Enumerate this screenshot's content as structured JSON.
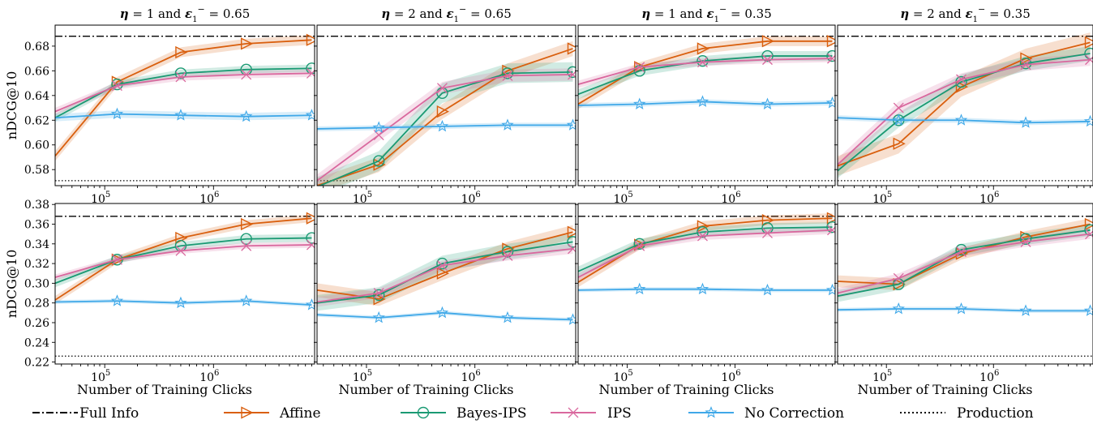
{
  "colors": {
    "Affine": "#d95f0e",
    "Bayes-IPS": "#1a9a73",
    "IPS": "#d9689e",
    "No Correction": "#3fa8e8",
    "Full Info": "#000000",
    "Production": "#000000"
  },
  "legend": [
    {
      "label": "Full Info",
      "style": "dashdot"
    },
    {
      "label": "Affine",
      "marker": "triangle-right"
    },
    {
      "label": "Bayes-IPS",
      "marker": "circle"
    },
    {
      "label": "IPS",
      "marker": "x"
    },
    {
      "label": "No Correction",
      "marker": "star"
    },
    {
      "label": "Production",
      "style": "dotted"
    }
  ],
  "chart_data": {
    "type": "line",
    "x_scale": "log",
    "xlim": [
      35000,
      8500000
    ],
    "x_ticks": [
      {
        "label": "10",
        "exp": "5",
        "value": 100000
      },
      {
        "label": "10",
        "exp": "6",
        "value": 1000000
      }
    ],
    "x_points": [
      35000,
      130000,
      500000,
      2000000,
      8000000
    ],
    "xlabel": "Number of Training Clicks",
    "ylabel": "nDCG@10",
    "titles": [
      {
        "pre": "η",
        "mid": " = 1 and ",
        "sym": "ε",
        "sub": "1",
        "sup": "−",
        "post": " = 0.65"
      },
      {
        "pre": "η",
        "mid": " = 2 and ",
        "sym": "ε",
        "sub": "1",
        "sup": "−",
        "post": " = 0.65"
      },
      {
        "pre": "η",
        "mid": " = 1 and ",
        "sym": "ε",
        "sub": "1",
        "sup": "−",
        "post": " = 0.35"
      },
      {
        "pre": "η",
        "mid": " = 2 and ",
        "sym": "ε",
        "sub": "1",
        "sup": "−",
        "post": " = 0.35"
      }
    ],
    "rows": [
      {
        "ylim": [
          0.567,
          0.697
        ],
        "y_ticks": [
          "0.58",
          "0.60",
          "0.62",
          "0.64",
          "0.66",
          "0.68"
        ],
        "full_info": 0.688,
        "production": 0.571,
        "panels": [
          {
            "series": [
              {
                "name": "Affine",
                "values": [
                  0.591,
                  0.651,
                  0.675,
                  0.682,
                  0.685
                ],
                "band": 0.004
              },
              {
                "name": "Bayes-IPS",
                "values": [
                  0.622,
                  0.649,
                  0.658,
                  0.661,
                  0.662
                ],
                "band": 0.003
              },
              {
                "name": "IPS",
                "values": [
                  0.627,
                  0.648,
                  0.655,
                  0.657,
                  0.658
                ],
                "band": 0.003
              },
              {
                "name": "No Correction",
                "values": [
                  0.622,
                  0.625,
                  0.624,
                  0.623,
                  0.624
                ],
                "band": 0.003
              }
            ]
          },
          {
            "series": [
              {
                "name": "Affine",
                "values": [
                  0.567,
                  0.584,
                  0.627,
                  0.66,
                  0.678
                ],
                "band": 0.006
              },
              {
                "name": "Bayes-IPS",
                "values": [
                  0.566,
                  0.587,
                  0.642,
                  0.658,
                  0.659
                ],
                "band": 0.008
              },
              {
                "name": "IPS",
                "values": [
                  0.571,
                  0.608,
                  0.646,
                  0.656,
                  0.657
                ],
                "band": 0.005
              },
              {
                "name": "No Correction",
                "values": [
                  0.613,
                  0.614,
                  0.615,
                  0.616,
                  0.616
                ],
                "band": 0.002
              }
            ]
          },
          {
            "series": [
              {
                "name": "Affine",
                "values": [
                  0.633,
                  0.663,
                  0.678,
                  0.684,
                  0.684
                ],
                "band": 0.004
              },
              {
                "name": "Bayes-IPS",
                "values": [
                  0.641,
                  0.66,
                  0.668,
                  0.672,
                  0.672
                ],
                "band": 0.004
              },
              {
                "name": "IPS",
                "values": [
                  0.649,
                  0.663,
                  0.667,
                  0.669,
                  0.67
                ],
                "band": 0.003
              },
              {
                "name": "No Correction",
                "values": [
                  0.632,
                  0.633,
                  0.635,
                  0.633,
                  0.634
                ],
                "band": 0.002
              }
            ]
          },
          {
            "series": [
              {
                "name": "Affine",
                "values": [
                  0.583,
                  0.601,
                  0.647,
                  0.67,
                  0.683
                ],
                "band": 0.008
              },
              {
                "name": "Bayes-IPS",
                "values": [
                  0.579,
                  0.62,
                  0.651,
                  0.666,
                  0.674
                ],
                "band": 0.006
              },
              {
                "name": "IPS",
                "values": [
                  0.584,
                  0.63,
                  0.653,
                  0.665,
                  0.669
                ],
                "band": 0.005
              },
              {
                "name": "No Correction",
                "values": [
                  0.622,
                  0.62,
                  0.62,
                  0.618,
                  0.619
                ],
                "band": 0.002
              }
            ]
          }
        ]
      },
      {
        "ylim": [
          0.218,
          0.381
        ],
        "y_ticks": [
          "0.22",
          "0.24",
          "0.26",
          "0.28",
          "0.30",
          "0.32",
          "0.34",
          "0.36",
          "0.38"
        ],
        "full_info": 0.368,
        "production": 0.226,
        "panels": [
          {
            "series": [
              {
                "name": "Affine",
                "values": [
                  0.283,
                  0.324,
                  0.346,
                  0.36,
                  0.366
                ],
                "band": 0.004
              },
              {
                "name": "Bayes-IPS",
                "values": [
                  0.3,
                  0.324,
                  0.338,
                  0.345,
                  0.346
                ],
                "band": 0.004
              },
              {
                "name": "IPS",
                "values": [
                  0.306,
                  0.324,
                  0.333,
                  0.338,
                  0.339
                ],
                "band": 0.003
              },
              {
                "name": "No Correction",
                "values": [
                  0.281,
                  0.282,
                  0.28,
                  0.282,
                  0.278
                ],
                "band": 0.002
              }
            ]
          },
          {
            "series": [
              {
                "name": "Affine",
                "values": [
                  0.293,
                  0.284,
                  0.31,
                  0.335,
                  0.352
                ],
                "band": 0.007
              },
              {
                "name": "Bayes-IPS",
                "values": [
                  0.28,
                  0.288,
                  0.32,
                  0.332,
                  0.342
                ],
                "band": 0.008
              },
              {
                "name": "IPS",
                "values": [
                  0.281,
                  0.29,
                  0.318,
                  0.328,
                  0.335
                ],
                "band": 0.005
              },
              {
                "name": "No Correction",
                "values": [
                  0.268,
                  0.265,
                  0.27,
                  0.265,
                  0.263
                ],
                "band": 0.002
              }
            ]
          },
          {
            "series": [
              {
                "name": "Affine",
                "values": [
                  0.301,
                  0.339,
                  0.358,
                  0.364,
                  0.366
                ],
                "band": 0.005
              },
              {
                "name": "Bayes-IPS",
                "values": [
                  0.312,
                  0.34,
                  0.352,
                  0.356,
                  0.357
                ],
                "band": 0.005
              },
              {
                "name": "IPS",
                "values": [
                  0.306,
                  0.338,
                  0.348,
                  0.351,
                  0.354
                ],
                "band": 0.004
              },
              {
                "name": "No Correction",
                "values": [
                  0.293,
                  0.294,
                  0.294,
                  0.293,
                  0.293
                ],
                "band": 0.002
              }
            ]
          },
          {
            "series": [
              {
                "name": "Affine",
                "values": [
                  0.302,
                  0.299,
                  0.33,
                  0.347,
                  0.36
                ],
                "band": 0.006
              },
              {
                "name": "Bayes-IPS",
                "values": [
                  0.287,
                  0.299,
                  0.334,
                  0.345,
                  0.354
                ],
                "band": 0.006
              },
              {
                "name": "IPS",
                "values": [
                  0.29,
                  0.305,
                  0.332,
                  0.342,
                  0.35
                ],
                "band": 0.005
              },
              {
                "name": "No Correction",
                "values": [
                  0.273,
                  0.274,
                  0.274,
                  0.272,
                  0.272
                ],
                "band": 0.002
              }
            ]
          }
        ]
      }
    ]
  }
}
